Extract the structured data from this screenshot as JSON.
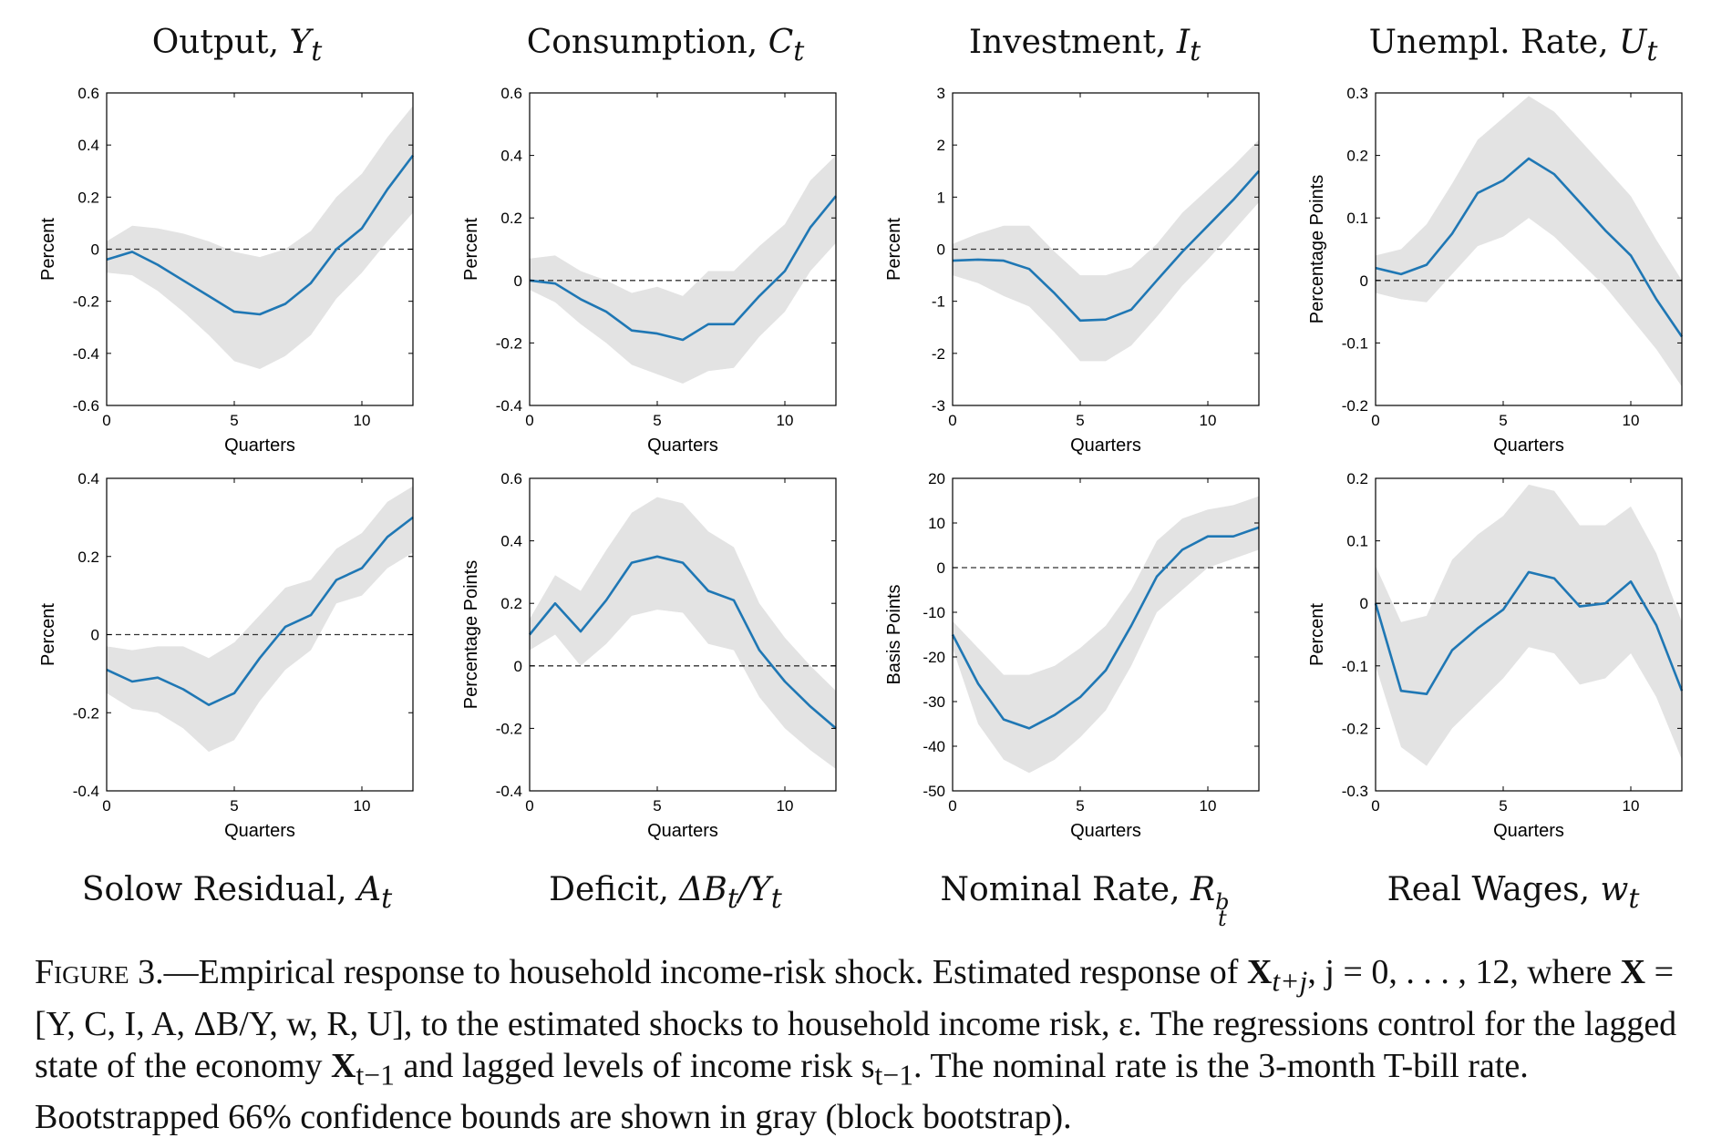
{
  "titles_top": [
    {
      "name": "Output, ",
      "sym": "Y",
      "sub": "t",
      "sup": ""
    },
    {
      "name": "Consumption, ",
      "sym": "C",
      "sub": "t",
      "sup": ""
    },
    {
      "name": "Investment, ",
      "sym": "I",
      "sub": "t",
      "sup": ""
    },
    {
      "name": "Unempl. Rate, ",
      "sym": "U",
      "sub": "t",
      "sup": ""
    }
  ],
  "titles_bottom": [
    {
      "name": "Solow Residual, ",
      "sym": "A",
      "sub": "t",
      "sup": ""
    },
    {
      "name": "Deficit, ",
      "sym": "ΔB",
      "sub": "t",
      "sup": "",
      "tail": "/Y",
      "tail_sub": "t"
    },
    {
      "name": "Nominal Rate, ",
      "sym": "R",
      "sub": "t",
      "sup": "b"
    },
    {
      "name": "Real Wages, ",
      "sym": "w",
      "sub": "t",
      "sup": ""
    }
  ],
  "caption": {
    "label": "Figure 3.",
    "text_1": "—Empirical response to household income-risk shock. Estimated response of ",
    "x_bold": "X",
    "x_sub": "t+j",
    "text_2": ", j = 0, . . . , 12, where ",
    "text_3": " = [Y",
    "vars": ", C, I, A, ΔB/Y, w, R",
    "text_4": ", U], to the estimated shocks to household income risk, ε",
    "text_5": ". The regressions control for the lagged state of the economy ",
    "x_lag_sub": "t−1",
    "text_6": " and lagged levels of income risk s",
    "text_7": ". The nominal rate is the 3-month T-bill rate. Bootstrapped 66% confidence bounds are shown in gray (block bootstrap)."
  },
  "colors": {
    "line": "#1f77b4",
    "band": "#e3e3e3",
    "zero": "#333333",
    "axis": "#000000"
  },
  "chart_data": [
    {
      "type": "line",
      "panel": "Output",
      "xlabel": "Quarters",
      "ylabel": "Percent",
      "xlim": [
        0,
        12
      ],
      "ylim": [
        -0.6,
        0.6
      ],
      "xticks": [
        0,
        5,
        10
      ],
      "yticks": [
        "-0.6",
        "-0.4",
        "-0.2",
        "0",
        "0.2",
        "0.4",
        "0.6"
      ],
      "x": [
        0,
        1,
        2,
        3,
        4,
        5,
        6,
        7,
        8,
        9,
        10,
        11,
        12
      ],
      "values": [
        -0.04,
        -0.01,
        -0.06,
        -0.12,
        -0.18,
        -0.24,
        -0.25,
        -0.21,
        -0.13,
        0.0,
        0.08,
        0.23,
        0.36
      ],
      "lower": [
        -0.09,
        -0.1,
        -0.16,
        -0.24,
        -0.33,
        -0.43,
        -0.46,
        -0.41,
        -0.33,
        -0.19,
        -0.09,
        0.03,
        0.14
      ],
      "upper": [
        0.03,
        0.09,
        0.08,
        0.06,
        0.03,
        -0.01,
        -0.03,
        0.0,
        0.07,
        0.2,
        0.29,
        0.43,
        0.55
      ]
    },
    {
      "type": "line",
      "panel": "Consumption",
      "xlabel": "Quarters",
      "ylabel": "Percent",
      "xlim": [
        0,
        12
      ],
      "ylim": [
        -0.4,
        0.6
      ],
      "xticks": [
        0,
        5,
        10
      ],
      "yticks": [
        "-0.4",
        "-0.2",
        "0",
        "0.2",
        "0.4",
        "0.6"
      ],
      "x": [
        0,
        1,
        2,
        3,
        4,
        5,
        6,
        7,
        8,
        9,
        10,
        11,
        12
      ],
      "values": [
        0.0,
        -0.01,
        -0.06,
        -0.1,
        -0.16,
        -0.17,
        -0.19,
        -0.14,
        -0.14,
        -0.05,
        0.03,
        0.17,
        0.27
      ],
      "lower": [
        -0.03,
        -0.07,
        -0.14,
        -0.2,
        -0.27,
        -0.3,
        -0.33,
        -0.29,
        -0.28,
        -0.18,
        -0.1,
        0.03,
        0.12
      ],
      "upper": [
        0.07,
        0.08,
        0.03,
        0.0,
        -0.04,
        -0.02,
        -0.05,
        0.03,
        0.03,
        0.11,
        0.18,
        0.32,
        0.4
      ]
    },
    {
      "type": "line",
      "panel": "Investment",
      "xlabel": "Quarters",
      "ylabel": "Percent",
      "xlim": [
        0,
        12
      ],
      "ylim": [
        -3,
        3
      ],
      "xticks": [
        0,
        5,
        10
      ],
      "yticks": [
        "-3",
        "-2",
        "-1",
        "0",
        "1",
        "2",
        "3"
      ],
      "x": [
        0,
        1,
        2,
        3,
        4,
        5,
        6,
        7,
        8,
        9,
        10,
        11,
        12
      ],
      "values": [
        -0.22,
        -0.2,
        -0.22,
        -0.38,
        -0.85,
        -1.37,
        -1.35,
        -1.16,
        -0.6,
        -0.05,
        0.45,
        0.95,
        1.5
      ],
      "lower": [
        -0.5,
        -0.65,
        -0.9,
        -1.1,
        -1.6,
        -2.15,
        -2.15,
        -1.85,
        -1.3,
        -0.7,
        -0.2,
        0.35,
        0.9
      ],
      "upper": [
        0.1,
        0.3,
        0.45,
        0.45,
        -0.05,
        -0.5,
        -0.5,
        -0.35,
        0.1,
        0.7,
        1.15,
        1.6,
        2.1
      ]
    },
    {
      "type": "line",
      "panel": "Unempl. Rate",
      "xlabel": "Quarters",
      "ylabel": "Percentage Points",
      "xlim": [
        0,
        12
      ],
      "ylim": [
        -0.2,
        0.3
      ],
      "xticks": [
        0,
        5,
        10
      ],
      "yticks": [
        "-0.2",
        "-0.1",
        "0",
        "0.1",
        "0.2",
        "0.3"
      ],
      "x": [
        0,
        1,
        2,
        3,
        4,
        5,
        6,
        7,
        8,
        9,
        10,
        11,
        12
      ],
      "values": [
        0.02,
        0.01,
        0.025,
        0.075,
        0.14,
        0.16,
        0.195,
        0.17,
        0.125,
        0.08,
        0.04,
        -0.03,
        -0.09
      ],
      "lower": [
        -0.02,
        -0.03,
        -0.035,
        0.01,
        0.055,
        0.07,
        0.1,
        0.07,
        0.03,
        -0.01,
        -0.06,
        -0.11,
        -0.17
      ],
      "upper": [
        0.04,
        0.05,
        0.09,
        0.155,
        0.225,
        0.26,
        0.295,
        0.27,
        0.225,
        0.18,
        0.135,
        0.065,
        0.0
      ]
    },
    {
      "type": "line",
      "panel": "Solow Residual",
      "xlabel": "Quarters",
      "ylabel": "Percent",
      "xlim": [
        0,
        12
      ],
      "ylim": [
        -0.4,
        0.4
      ],
      "xticks": [
        0,
        5,
        10
      ],
      "yticks": [
        "-0.4",
        "-0.2",
        "0",
        "0.2",
        "0.4"
      ],
      "x": [
        0,
        1,
        2,
        3,
        4,
        5,
        6,
        7,
        8,
        9,
        10,
        11,
        12
      ],
      "values": [
        -0.09,
        -0.12,
        -0.11,
        -0.14,
        -0.18,
        -0.15,
        -0.06,
        0.02,
        0.05,
        0.14,
        0.17,
        0.25,
        0.3
      ],
      "lower": [
        -0.15,
        -0.19,
        -0.2,
        -0.24,
        -0.3,
        -0.27,
        -0.17,
        -0.09,
        -0.04,
        0.08,
        0.1,
        0.17,
        0.21
      ],
      "upper": [
        -0.03,
        -0.04,
        -0.03,
        -0.03,
        -0.06,
        -0.02,
        0.05,
        0.12,
        0.14,
        0.22,
        0.26,
        0.34,
        0.38
      ]
    },
    {
      "type": "line",
      "panel": "Deficit",
      "xlabel": "Quarters",
      "ylabel": "Percentage Points",
      "xlim": [
        0,
        12
      ],
      "ylim": [
        -0.4,
        0.6
      ],
      "xticks": [
        0,
        5,
        10
      ],
      "yticks": [
        "-0.4",
        "-0.2",
        "0",
        "0.2",
        "0.4",
        "0.6"
      ],
      "x": [
        0,
        1,
        2,
        3,
        4,
        5,
        6,
        7,
        8,
        9,
        10,
        11,
        12
      ],
      "values": [
        0.1,
        0.2,
        0.11,
        0.21,
        0.33,
        0.35,
        0.33,
        0.24,
        0.21,
        0.05,
        -0.05,
        -0.13,
        -0.2
      ],
      "lower": [
        0.05,
        0.1,
        0.0,
        0.07,
        0.16,
        0.18,
        0.17,
        0.07,
        0.05,
        -0.1,
        -0.2,
        -0.27,
        -0.33
      ],
      "upper": [
        0.15,
        0.29,
        0.24,
        0.37,
        0.49,
        0.54,
        0.52,
        0.43,
        0.38,
        0.2,
        0.09,
        0.0,
        -0.08
      ]
    },
    {
      "type": "line",
      "panel": "Nominal Rate",
      "xlabel": "Quarters",
      "ylabel": "Basis Points",
      "xlim": [
        0,
        12
      ],
      "ylim": [
        -50,
        20
      ],
      "xticks": [
        0,
        5,
        10
      ],
      "yticks": [
        "-50",
        "-40",
        "-30",
        "-20",
        "-10",
        "0",
        "10",
        "20"
      ],
      "x": [
        0,
        1,
        2,
        3,
        4,
        5,
        6,
        7,
        8,
        9,
        10,
        11,
        12
      ],
      "values": [
        -15,
        -26,
        -34,
        -36,
        -33,
        -29,
        -23,
        -13,
        -2,
        4,
        7,
        7,
        9
      ],
      "lower": [
        -18,
        -35,
        -43,
        -46,
        -43,
        -38,
        -32,
        -22,
        -10,
        -5,
        0,
        2,
        4
      ],
      "upper": [
        -12,
        -18,
        -24,
        -24,
        -22,
        -18,
        -13,
        -5,
        6,
        11,
        13,
        14,
        16
      ]
    },
    {
      "type": "line",
      "panel": "Real Wages",
      "xlabel": "Quarters",
      "ylabel": "Percent",
      "xlim": [
        0,
        12
      ],
      "ylim": [
        -0.3,
        0.2
      ],
      "xticks": [
        0,
        5,
        10
      ],
      "yticks": [
        "-0.3",
        "-0.2",
        "-0.1",
        "0",
        "0.1",
        "0.2"
      ],
      "x": [
        0,
        1,
        2,
        3,
        4,
        5,
        6,
        7,
        8,
        9,
        10,
        11,
        12
      ],
      "values": [
        0.0,
        -0.14,
        -0.145,
        -0.075,
        -0.04,
        -0.01,
        0.05,
        0.04,
        -0.005,
        0.0,
        0.035,
        -0.035,
        -0.14
      ],
      "lower": [
        -0.1,
        -0.23,
        -0.26,
        -0.2,
        -0.16,
        -0.12,
        -0.07,
        -0.08,
        -0.13,
        -0.12,
        -0.08,
        -0.15,
        -0.25
      ],
      "upper": [
        0.06,
        -0.03,
        -0.02,
        0.07,
        0.11,
        0.14,
        0.19,
        0.18,
        0.125,
        0.125,
        0.155,
        0.08,
        -0.03
      ]
    }
  ]
}
